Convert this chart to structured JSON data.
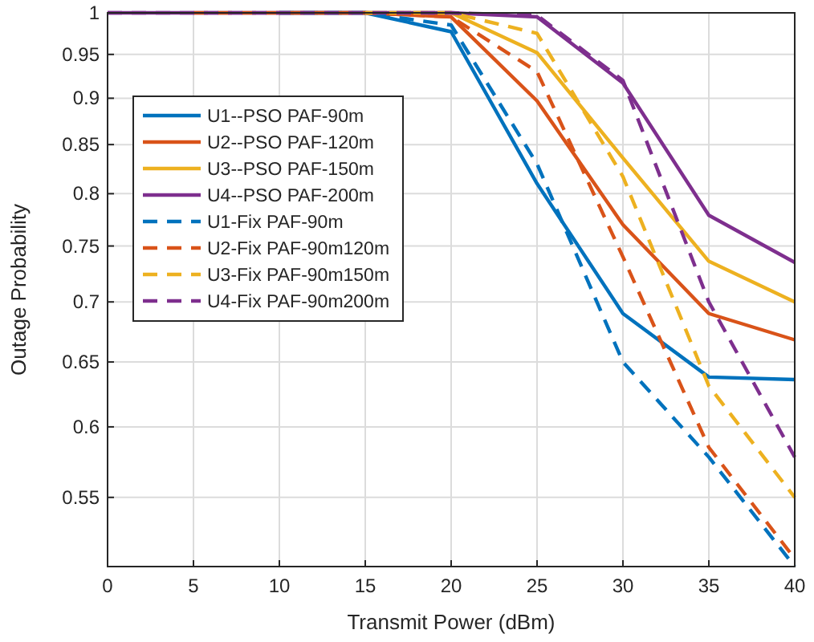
{
  "chart_data": {
    "type": "line",
    "xlabel": "Transmit Power (dBm)",
    "ylabel": "Outage Probability",
    "x": [
      0,
      5,
      10,
      15,
      20,
      25,
      30,
      35,
      40
    ],
    "log": "y",
    "grid": true,
    "legend": "top left",
    "xlim": [
      0,
      40
    ],
    "xticks": [
      0,
      5,
      10,
      15,
      20,
      25,
      30,
      35,
      40
    ],
    "ylim": [
      0.505,
      1
    ],
    "yticks": [
      0.55,
      0.6,
      0.65,
      0.7,
      0.75,
      0.8,
      0.85,
      0.9,
      0.95,
      1
    ],
    "series": [
      {
        "name": "U1--PSO PAF-90m",
        "color": "#0072bd",
        "line_style": "solid",
        "values": [
          null,
          null,
          1,
          1,
          0.977,
          0.81,
          0.69,
          0.638,
          0.636
        ]
      },
      {
        "name": "U2--PSO PAF-120m",
        "color": "#d95319",
        "line_style": "solid",
        "values": [
          null,
          null,
          1,
          1,
          0.995,
          0.897,
          0.77,
          0.69,
          0.668
        ]
      },
      {
        "name": "U3--PSO PAF-150m",
        "color": "#edb120",
        "line_style": "solid",
        "values": [
          null,
          null,
          null,
          1,
          1,
          0.952,
          0.836,
          0.736,
          0.7
        ]
      },
      {
        "name": "U4--PSO PAF-200m",
        "color": "#7e2f8e",
        "line_style": "solid",
        "values": [
          1,
          1,
          1,
          1,
          1,
          0.995,
          0.917,
          0.779,
          0.735
        ]
      },
      {
        "name": "U1-Fix PAF-90m",
        "color": "#0072bd",
        "line_style": "dashed",
        "values": [
          null,
          null,
          1,
          1,
          0.985,
          0.83,
          0.65,
          0.578,
          0.505
        ]
      },
      {
        "name": "U2-Fix PAF-90m120m",
        "color": "#d95319",
        "line_style": "dashed",
        "values": [
          null,
          1,
          1,
          1,
          0.995,
          0.93,
          0.74,
          0.585,
          0.51
        ]
      },
      {
        "name": "U3-Fix PAF-90m150m",
        "color": "#edb120",
        "line_style": "dashed",
        "values": [
          null,
          null,
          null,
          1,
          1,
          0.975,
          0.817,
          0.631,
          0.55
        ]
      },
      {
        "name": "U4-Fix PAF-90m200m",
        "color": "#7e2f8e",
        "line_style": "dashed",
        "values": [
          1,
          1,
          1,
          1,
          1,
          0.997,
          0.92,
          0.7,
          0.578
        ]
      }
    ]
  }
}
